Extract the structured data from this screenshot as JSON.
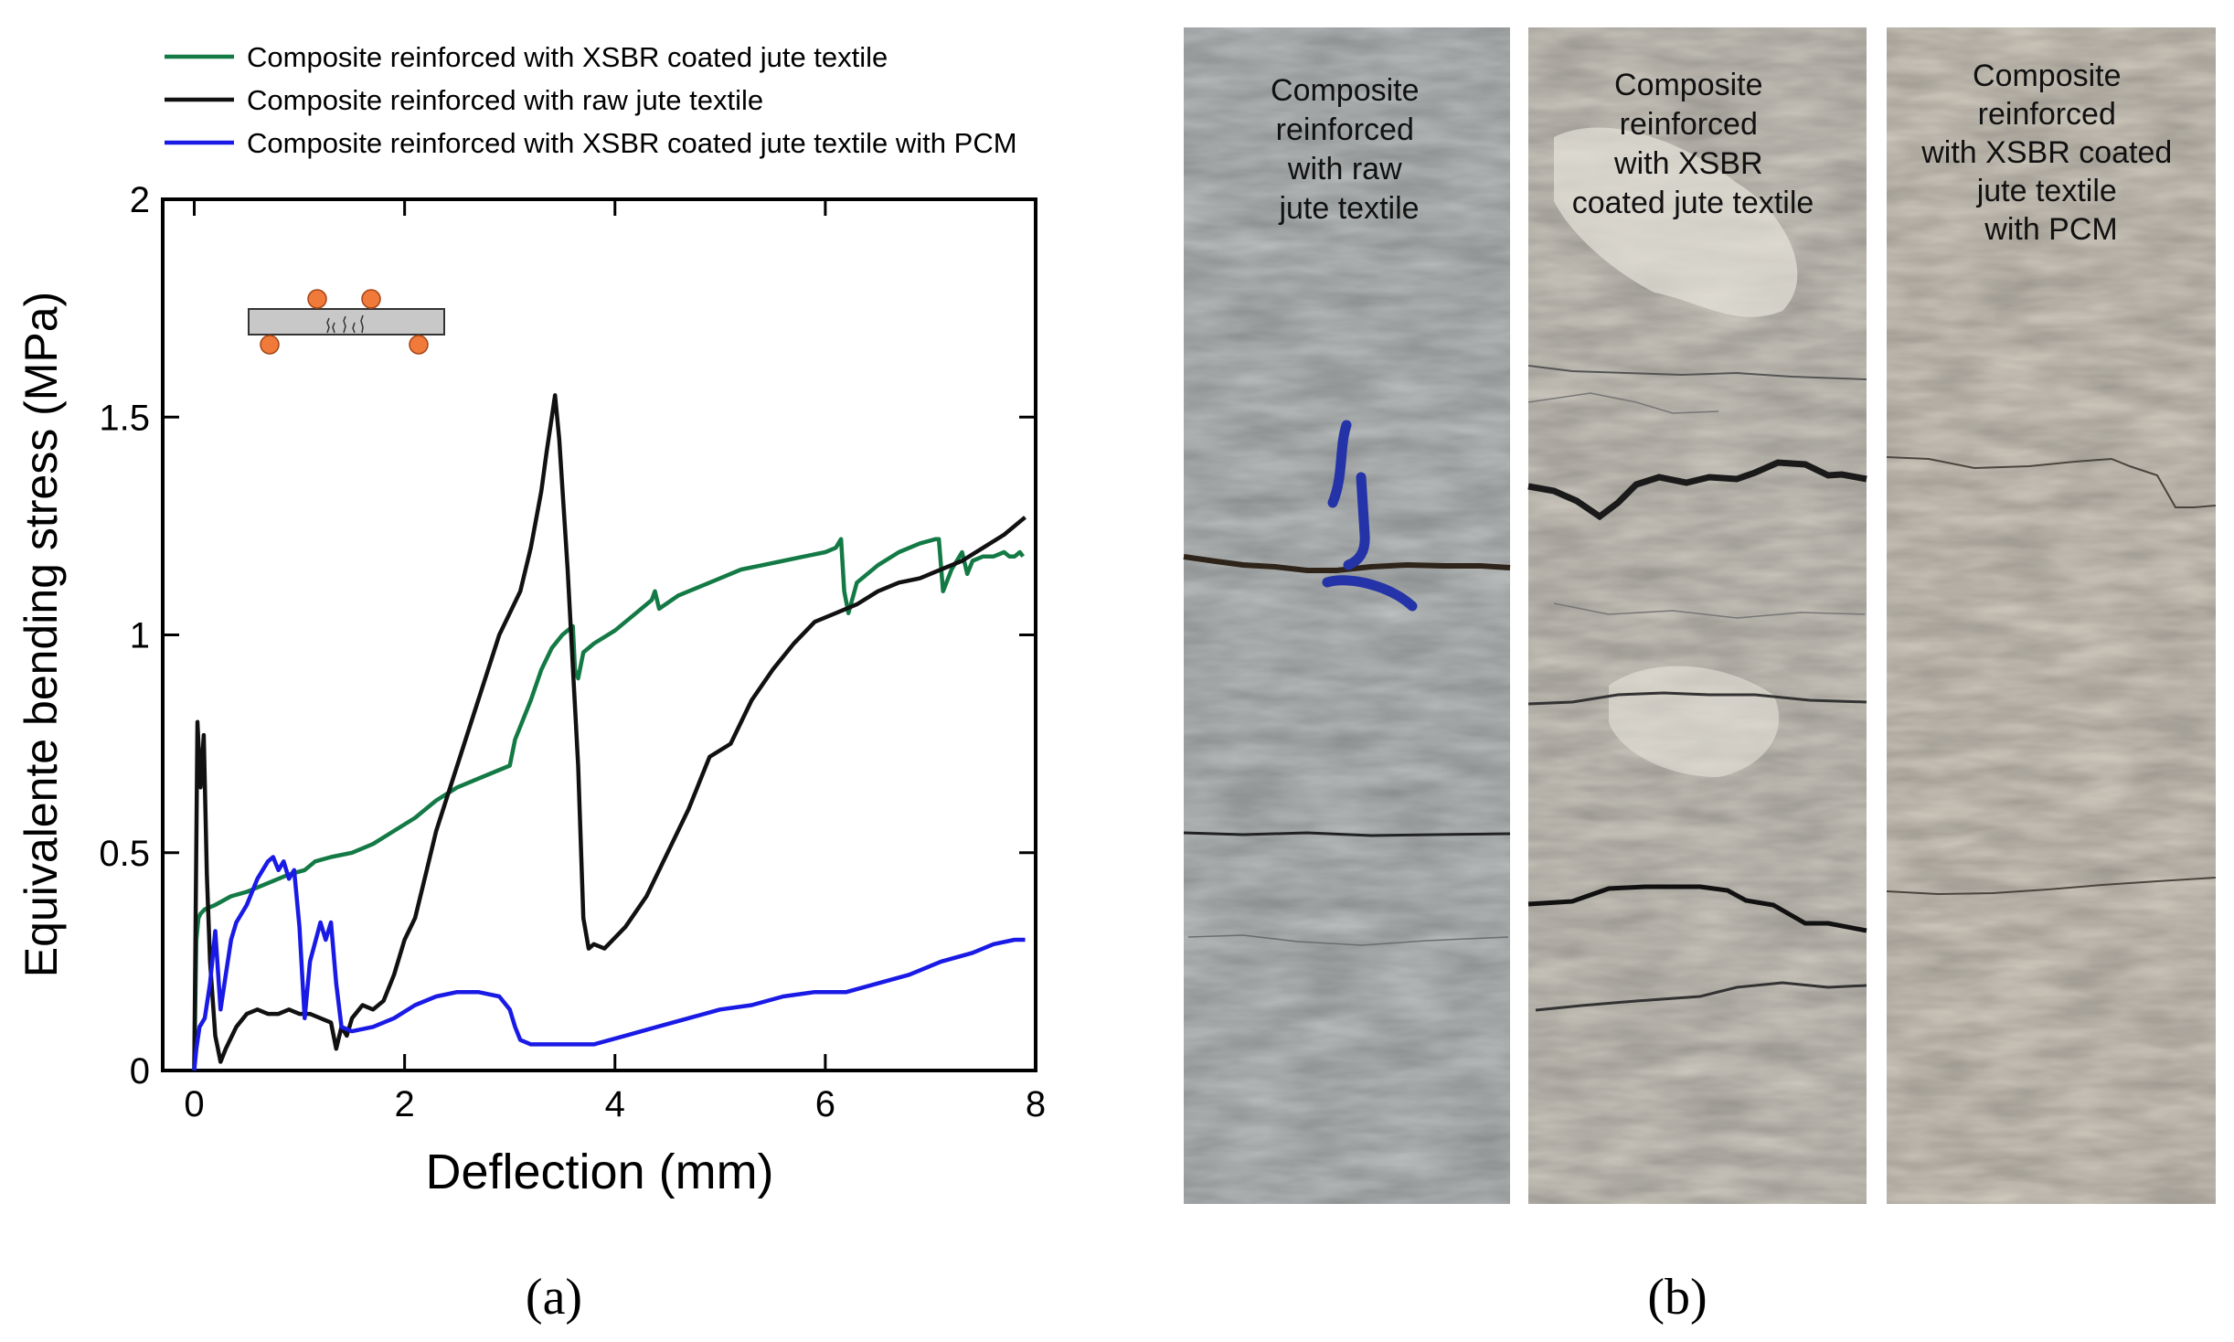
{
  "panel_a": {
    "caption": "(a)",
    "chart_data": {
      "type": "line",
      "title": "",
      "xlabel": "Deflection (mm)",
      "ylabel": "Equivalente bending stress (MPa)",
      "xlim": [
        -0.3,
        8.0
      ],
      "ylim": [
        0,
        2
      ],
      "xticks": [
        0,
        2,
        4,
        6,
        8
      ],
      "xtick_labels": [
        "0",
        "2",
        "4",
        "6",
        "8"
      ],
      "yticks": [
        0,
        0.5,
        1,
        1.5,
        2
      ],
      "ytick_labels": [
        "0",
        "0.5",
        "1",
        "1.5",
        "2"
      ],
      "legend_position": "top-left, above the plot",
      "inset": "four-point bending test schematic (specimen bar with two loading and two support rollers)",
      "series": [
        {
          "name": "Composite reinforced with XSBR coated jute textile",
          "color": "#137a45",
          "x": [
            0,
            0.02,
            0.04,
            0.06,
            0.1,
            0.2,
            0.35,
            0.5,
            0.7,
            0.9,
            1.05,
            1.15,
            1.3,
            1.5,
            1.7,
            1.9,
            2.1,
            2.3,
            2.5,
            2.8,
            3.0,
            3.05,
            3.2,
            3.3,
            3.4,
            3.5,
            3.55,
            3.6,
            3.62,
            3.65,
            3.7,
            3.8,
            4.0,
            4.2,
            4.35,
            4.38,
            4.42,
            4.6,
            4.8,
            5.0,
            5.2,
            5.4,
            5.6,
            5.8,
            6.0,
            6.1,
            6.15,
            6.18,
            6.22,
            6.3,
            6.5,
            6.7,
            6.9,
            7.05,
            7.08,
            7.12,
            7.2,
            7.3,
            7.35,
            7.4,
            7.5,
            7.6,
            7.7,
            7.75,
            7.8,
            7.85,
            7.88
          ],
          "y": [
            0,
            0.3,
            0.35,
            0.36,
            0.37,
            0.38,
            0.4,
            0.41,
            0.43,
            0.45,
            0.46,
            0.48,
            0.49,
            0.5,
            0.52,
            0.55,
            0.58,
            0.62,
            0.65,
            0.68,
            0.7,
            0.76,
            0.85,
            0.92,
            0.97,
            1.0,
            1.01,
            1.02,
            0.92,
            0.9,
            0.96,
            0.98,
            1.01,
            1.05,
            1.08,
            1.1,
            1.06,
            1.09,
            1.11,
            1.13,
            1.15,
            1.16,
            1.17,
            1.18,
            1.19,
            1.2,
            1.22,
            1.1,
            1.05,
            1.12,
            1.16,
            1.19,
            1.21,
            1.22,
            1.22,
            1.1,
            1.15,
            1.19,
            1.14,
            1.17,
            1.18,
            1.18,
            1.19,
            1.18,
            1.18,
            1.19,
            1.18
          ]
        },
        {
          "name": "Composite reinforced with raw jute textile",
          "color": "#111111",
          "x": [
            0,
            0.03,
            0.06,
            0.09,
            0.12,
            0.15,
            0.2,
            0.25,
            0.3,
            0.4,
            0.5,
            0.6,
            0.7,
            0.8,
            0.9,
            1.0,
            1.1,
            1.2,
            1.3,
            1.35,
            1.4,
            1.45,
            1.5,
            1.6,
            1.7,
            1.8,
            1.9,
            2.0,
            2.1,
            2.2,
            2.3,
            2.5,
            2.7,
            2.9,
            3.1,
            3.2,
            3.3,
            3.35,
            3.4,
            3.43,
            3.47,
            3.55,
            3.65,
            3.7,
            3.75,
            3.8,
            3.9,
            4.1,
            4.3,
            4.5,
            4.7,
            4.9,
            5.1,
            5.3,
            5.5,
            5.7,
            5.9,
            6.1,
            6.3,
            6.5,
            6.7,
            6.9,
            7.1,
            7.3,
            7.5,
            7.7,
            7.9
          ],
          "y": [
            0,
            0.8,
            0.65,
            0.77,
            0.45,
            0.25,
            0.08,
            0.02,
            0.05,
            0.1,
            0.13,
            0.14,
            0.13,
            0.13,
            0.14,
            0.13,
            0.13,
            0.12,
            0.11,
            0.05,
            0.1,
            0.08,
            0.12,
            0.15,
            0.14,
            0.16,
            0.22,
            0.3,
            0.35,
            0.45,
            0.55,
            0.7,
            0.85,
            1.0,
            1.1,
            1.2,
            1.33,
            1.42,
            1.5,
            1.55,
            1.45,
            1.15,
            0.7,
            0.35,
            0.28,
            0.29,
            0.28,
            0.33,
            0.4,
            0.5,
            0.6,
            0.72,
            0.75,
            0.85,
            0.92,
            0.98,
            1.03,
            1.05,
            1.07,
            1.1,
            1.12,
            1.13,
            1.15,
            1.17,
            1.2,
            1.23,
            1.27
          ]
        },
        {
          "name": "Composite reinforced with XSBR coated jute textile with PCM",
          "color": "#1a1ae6",
          "x": [
            0,
            0.02,
            0.05,
            0.1,
            0.15,
            0.2,
            0.25,
            0.3,
            0.35,
            0.4,
            0.5,
            0.6,
            0.7,
            0.75,
            0.8,
            0.85,
            0.9,
            0.95,
            1.0,
            1.05,
            1.1,
            1.2,
            1.25,
            1.3,
            1.35,
            1.4,
            1.5,
            1.7,
            1.9,
            2.1,
            2.3,
            2.5,
            2.7,
            2.9,
            3.0,
            3.05,
            3.1,
            3.2,
            3.5,
            3.8,
            4.1,
            4.4,
            4.7,
            5.0,
            5.3,
            5.6,
            5.9,
            6.2,
            6.5,
            6.8,
            7.1,
            7.4,
            7.6,
            7.8,
            7.9
          ],
          "y": [
            0,
            0.05,
            0.1,
            0.12,
            0.2,
            0.32,
            0.14,
            0.22,
            0.3,
            0.34,
            0.38,
            0.44,
            0.48,
            0.49,
            0.46,
            0.48,
            0.44,
            0.46,
            0.33,
            0.12,
            0.25,
            0.34,
            0.3,
            0.34,
            0.2,
            0.1,
            0.09,
            0.1,
            0.12,
            0.15,
            0.17,
            0.18,
            0.18,
            0.17,
            0.14,
            0.1,
            0.07,
            0.06,
            0.06,
            0.06,
            0.08,
            0.1,
            0.12,
            0.14,
            0.15,
            0.17,
            0.18,
            0.18,
            0.2,
            0.22,
            0.25,
            0.27,
            0.29,
            0.3,
            0.3
          ]
        }
      ]
    }
  },
  "panel_b": {
    "caption": "(b)",
    "specimens": [
      {
        "label_lines": [
          "Composite",
          "reinforced",
          "with raw",
          "jute textile"
        ],
        "surface_color": "#bcc0c0"
      },
      {
        "label_lines": [
          "Composite",
          "reinforced",
          "with XSBR",
          "coated jute textile"
        ],
        "surface_color": "#cfcbc2"
      },
      {
        "label_lines": [
          "Composite",
          "reinforced",
          "with XSBR coated",
          "jute textile",
          "with PCM"
        ],
        "surface_color": "#d3cdc1"
      }
    ]
  }
}
